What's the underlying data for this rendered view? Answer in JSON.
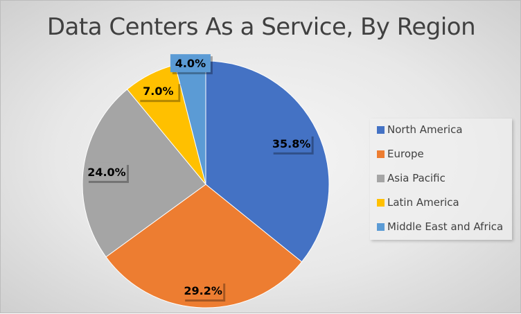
{
  "chart_data": {
    "type": "pie",
    "title": "Data Centers As a Service, By Region",
    "categories": [
      "North America",
      "Europe",
      "Asia Pacific",
      "Latin America",
      "Middle East and Africa"
    ],
    "values": [
      35.8,
      29.2,
      24.0,
      7.0,
      4.0
    ],
    "data_labels": [
      "35.8%",
      "29.2%",
      "24.0%",
      "7.0%",
      "4.0%"
    ],
    "colors": [
      "#4472c4",
      "#ed7d31",
      "#a5a5a5",
      "#ffc000",
      "#5b9bd5"
    ],
    "legend_position": "right",
    "start_angle_deg": 0,
    "direction": "clockwise"
  }
}
